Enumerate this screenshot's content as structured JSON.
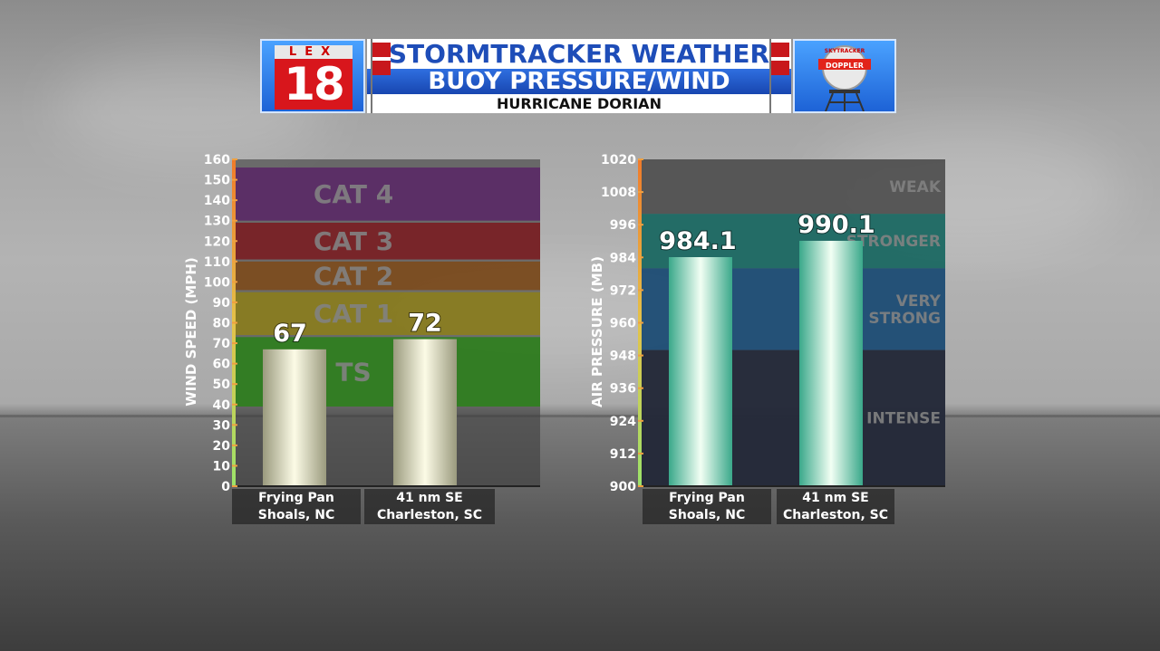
{
  "header": {
    "logo_top": "LEX",
    "logo_number": "18",
    "title_line1": "STORMTRACKER WEATHER",
    "title_line2": "BUOY PRESSURE/WIND",
    "title_line3": "HURRICANE DORIAN",
    "doppler_label": "DOPPLER",
    "doppler_top": "SKYTRACKER"
  },
  "colors": {
    "title_blue": "#1e4db8",
    "logo_red": "#d8161c",
    "cat4": "#5a2a66",
    "cat3": "#7a1f24",
    "cat2": "#7d4c1d",
    "cat1": "#8a7d1e",
    "ts": "#2f7f1e",
    "weak": "#555555",
    "stronger": "#1d6d66",
    "very_strong": "#1e4f78",
    "intense": "#232838"
  },
  "chart_data": [
    {
      "type": "bar",
      "ylabel": "WIND SPEED (MPH)",
      "ylim": [
        0,
        160
      ],
      "yticks": [
        0,
        10,
        20,
        30,
        40,
        50,
        60,
        70,
        80,
        90,
        100,
        110,
        120,
        130,
        140,
        150,
        160
      ],
      "categories": [
        "Frying Pan\nShoals, NC",
        "41 nm SE\nCharleston, SC"
      ],
      "category_lines": [
        [
          "Frying Pan",
          "Shoals, NC"
        ],
        [
          "41 nm SE",
          "Charleston, SC"
        ]
      ],
      "values": [
        67,
        72
      ],
      "value_labels": [
        "67",
        "72"
      ],
      "bands": [
        {
          "label": "CAT 4",
          "from": 130,
          "to": 156,
          "color": "#5a2a66"
        },
        {
          "label": "CAT 3",
          "from": 111,
          "to": 129,
          "color": "#7a1f24"
        },
        {
          "label": "CAT 2",
          "from": 96,
          "to": 110,
          "color": "#7d4c1d"
        },
        {
          "label": "CAT 1",
          "from": 74,
          "to": 95,
          "color": "#8a7d1e"
        },
        {
          "label": "TS",
          "from": 39,
          "to": 73,
          "color": "#2f7f1e"
        }
      ],
      "grid": false
    },
    {
      "type": "bar",
      "ylabel": "AIR PRESSURE (MB)",
      "ylim": [
        900,
        1020
      ],
      "yticks": [
        900,
        912,
        924,
        936,
        948,
        960,
        972,
        984,
        996,
        1008,
        1020
      ],
      "categories": [
        "Frying Pan\nShoals, NC",
        "41 nm SE\nCharleston, SC"
      ],
      "category_lines": [
        [
          "Frying Pan",
          "Shoals, NC"
        ],
        [
          "41 nm SE",
          "Charleston, SC"
        ]
      ],
      "values": [
        984.1,
        990.1
      ],
      "value_labels": [
        "984.1",
        "990.1"
      ],
      "bands": [
        {
          "label_lines": [
            "WEAK"
          ],
          "from": 1000,
          "to": 1020,
          "color": "#555555"
        },
        {
          "label_lines": [
            "STRONGER"
          ],
          "from": 980,
          "to": 1000,
          "color": "#1d6d66"
        },
        {
          "label_lines": [
            "VERY",
            "STRONG"
          ],
          "from": 950,
          "to": 980,
          "color": "#1e4f78"
        },
        {
          "label_lines": [
            "INTENSE"
          ],
          "from": 900,
          "to": 950,
          "color": "#232838"
        }
      ],
      "grid": false
    }
  ]
}
